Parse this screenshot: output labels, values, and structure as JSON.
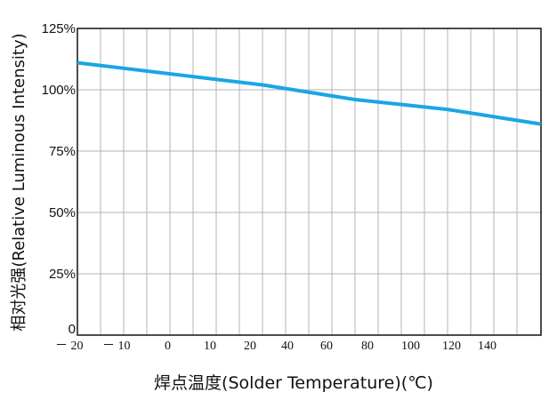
{
  "chart_data": {
    "type": "line",
    "title": "",
    "xlabel": "焊点温度(Solder Temperature)(℃)",
    "ylabel": "相对光强(Relative Luminous Intensity)",
    "x_tick_labels": [
      "－ 20",
      "－ 10",
      "0",
      "10",
      "20",
      "40",
      "60",
      "80",
      "100",
      "120",
      "140"
    ],
    "y_tick_labels": [
      "0",
      "25%",
      "50%",
      "75%",
      "100%",
      "125%"
    ],
    "y_tick_values": [
      0,
      25,
      50,
      75,
      100,
      125
    ],
    "ylim": [
      0,
      125
    ],
    "grid": true,
    "series": [
      {
        "x": [
          "－ 20",
          "20",
          "60",
          "100",
          "140"
        ],
        "y": [
          111,
          102,
          96,
          92,
          86
        ],
        "color": "#1aa6e4"
      }
    ]
  }
}
